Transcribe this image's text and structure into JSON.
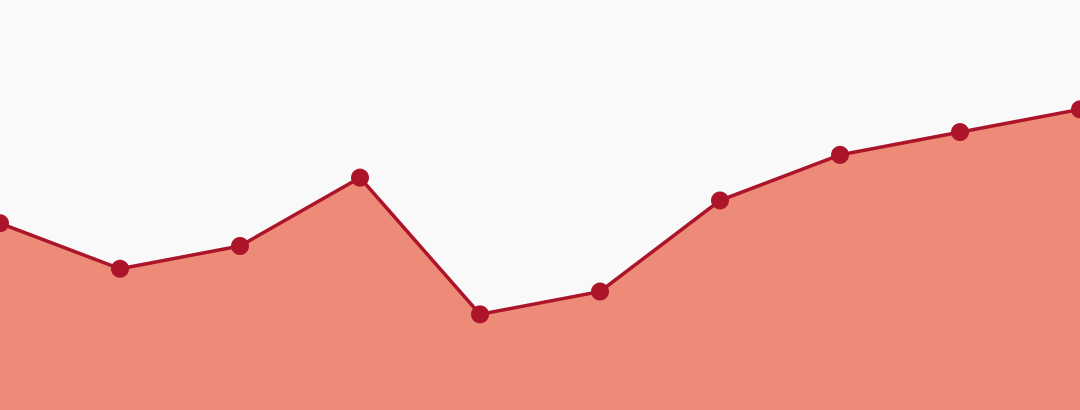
{
  "chart_data": {
    "type": "area",
    "x": [
      0,
      1,
      2,
      3,
      4,
      5,
      6,
      7,
      8,
      9
    ],
    "series": [
      {
        "values": [
          50,
          30,
          40,
          70,
          10,
          20,
          60,
          80,
          90,
          100
        ]
      }
    ],
    "ylim": [
      -32,
      148
    ],
    "grid": false,
    "legend": "none",
    "colors": {
      "background": "#f9f9fa",
      "area_fill": "#ee8a78",
      "line": "#ab1429",
      "marker": "#ab1429"
    }
  }
}
